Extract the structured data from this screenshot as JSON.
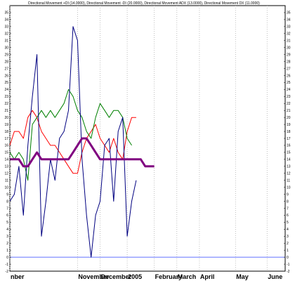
{
  "chart_data": {
    "type": "line",
    "title": "Directional Movement +DI (14.0000), Directional Movement -DI (20.0000), Directional Movement ADX (13.0000), Directional Movement DX (11.0000)",
    "xlabel": "",
    "ylabel": "",
    "ylim": [
      -2,
      36
    ],
    "yticks": [
      -2,
      -1,
      0,
      1,
      2,
      3,
      4,
      5,
      6,
      7,
      8,
      9,
      10,
      11,
      12,
      13,
      14,
      15,
      16,
      17,
      18,
      19,
      20,
      21,
      22,
      23,
      24,
      25,
      26,
      27,
      28,
      29,
      30,
      31,
      32,
      33,
      34,
      35
    ],
    "x_labels": [
      {
        "label": "nber",
        "index": 0
      },
      {
        "label": "November",
        "index": 15
      },
      {
        "label": "December",
        "index": 20
      },
      {
        "label": "2005",
        "index": 26
      },
      {
        "label": "February",
        "index": 32
      },
      {
        "label": "March",
        "index": 37
      },
      {
        "label": "April",
        "index": 42
      },
      {
        "label": "May",
        "index": 50
      },
      {
        "label": "June",
        "index": 57
      }
    ],
    "grid": true,
    "x_count": 62,
    "reference_line": 0,
    "series": [
      {
        "name": "",
        "color": "#ff0000",
        "width": 1,
        "values": [
          16,
          18,
          18,
          17,
          20,
          21,
          20,
          18,
          17,
          16,
          16,
          15,
          14,
          13,
          12,
          12,
          15,
          17,
          18,
          19,
          17,
          16,
          15,
          17,
          15,
          14,
          18,
          20,
          20
        ]
      },
      {
        "name": "",
        "color": "#008000",
        "width": 1,
        "values": [
          15,
          14,
          15,
          14,
          11,
          19,
          20,
          21,
          20,
          21,
          20,
          21,
          22,
          24,
          23,
          21,
          20,
          18,
          17,
          20,
          22,
          21,
          20,
          21,
          21,
          20,
          17,
          16
        ]
      },
      {
        "name": "",
        "color": "#000080",
        "width": 1,
        "values": [
          8,
          9,
          13,
          6,
          16,
          23,
          29,
          3,
          8,
          14,
          11,
          17,
          18,
          21,
          33,
          31,
          14,
          6,
          0,
          6,
          8,
          16,
          17,
          8,
          18,
          20,
          3,
          8,
          11
        ]
      },
      {
        "name": "",
        "color": "#800080",
        "width": 3,
        "values": [
          14,
          14,
          14,
          13,
          13,
          14,
          15,
          14,
          14,
          14,
          14,
          14,
          14,
          14,
          15,
          16,
          17,
          17,
          16,
          15,
          14,
          14,
          14,
          14,
          14,
          14,
          14,
          14,
          14,
          14,
          13,
          13,
          13
        ]
      }
    ]
  }
}
